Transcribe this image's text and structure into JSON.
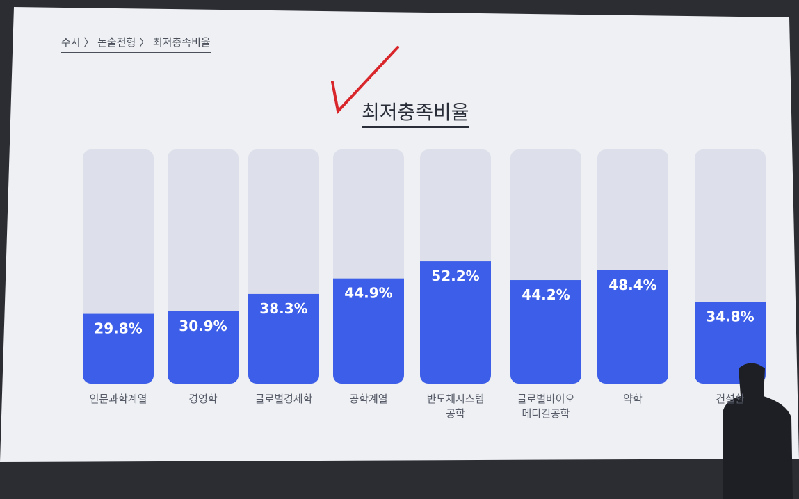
{
  "breadcrumb": "수시 〉 논술전형 〉 최저충족비율",
  "chart_data": {
    "type": "bar",
    "title": "최저충족비율",
    "categories": [
      "인문과학계열",
      "경영학",
      "글로벌경제학",
      "공학계열",
      "반도체시스템\n공학",
      "글로벌바이오\n메디컬공학",
      "약학",
      "건설환"
    ],
    "values": [
      29.8,
      30.9,
      38.3,
      44.9,
      52.2,
      44.2,
      48.4,
      34.8
    ],
    "value_labels": [
      "29.8%",
      "30.9%",
      "38.3%",
      "44.9%",
      "52.2%",
      "44.2%",
      "48.4%",
      "34.8%"
    ],
    "color": "#3d5ee8",
    "ylim": [
      0,
      100
    ]
  }
}
